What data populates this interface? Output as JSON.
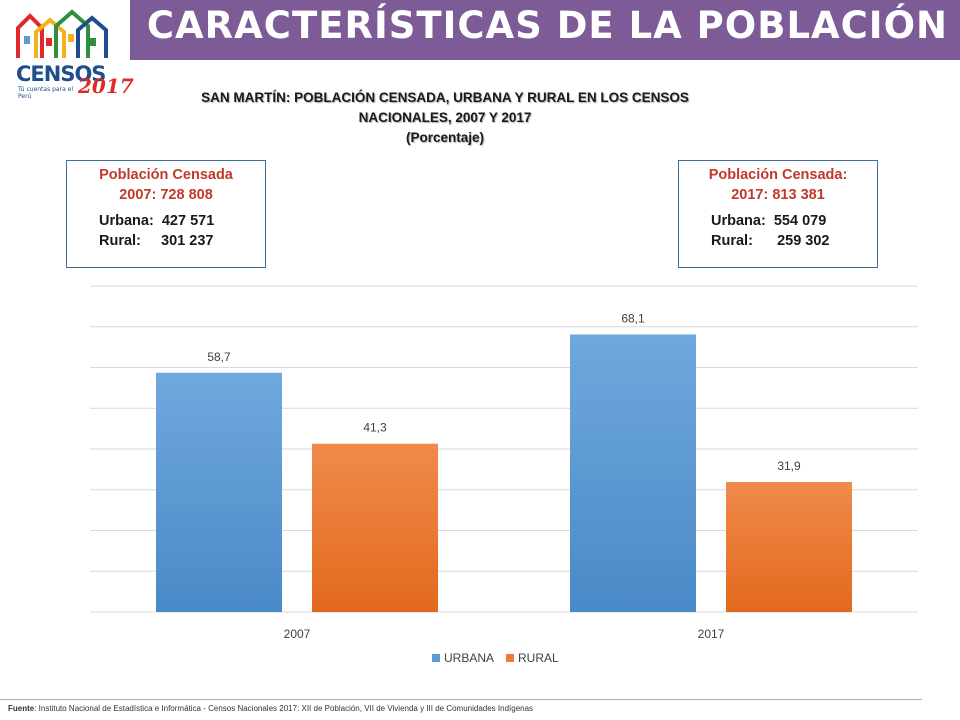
{
  "header": {
    "title": "CARACTERÍSTICAS DE LA POBLACIÓN",
    "logo_text": "CENSOS",
    "logo_year": "2017",
    "logo_tagline": "Tú cuentas para el Perú"
  },
  "infobox_2007": {
    "line1": "Población Censada",
    "line2": "2007:   728 808",
    "urbana": "Urbana:  427 571",
    "rural": "Rural:     301 237"
  },
  "infobox_2017": {
    "line1": "Población Censada:",
    "line2": "2017:  813 381",
    "urbana": "Urbana:  554 079",
    "rural": "Rural:      259 302"
  },
  "source": {
    "label": "Fuente",
    "text": ": Instituto Nacional de Estadística e Informática - Censos Nacionales 2017: XII de Población, VII de Vivienda y III de Comunidades Indígenas"
  },
  "colors": {
    "header_bg": "#7d5b97",
    "urbana": "#5b9bd5",
    "rural": "#ed7d31",
    "gridline": "#d9d9d9"
  },
  "chart_data": {
    "type": "bar",
    "title_line1": "SAN MARTÍN: POBLACIÓN CENSADA, URBANA Y RURAL EN LOS CENSOS",
    "title_line2": "NACIONALES, 2007 Y 2017",
    "subtitle": "(Porcentaje)",
    "categories": [
      "2007",
      "2017"
    ],
    "series": [
      {
        "name": "URBANA",
        "values": [
          58.7,
          68.1
        ],
        "labels": [
          "58,7",
          "68,1"
        ],
        "color": "#5b9bd5"
      },
      {
        "name": "RURAL",
        "values": [
          41.3,
          31.9
        ],
        "labels": [
          "41,3",
          "31,9"
        ],
        "color": "#ed7d31"
      }
    ],
    "ylim": [
      0,
      80
    ],
    "grid": true,
    "legend": "bottom"
  }
}
